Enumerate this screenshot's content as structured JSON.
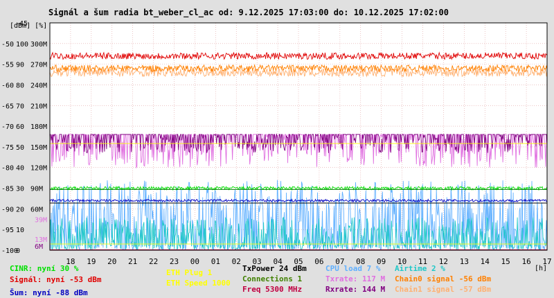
{
  "chart_data": {
    "type": "line",
    "title": "Signál a šum radia bt_weber_cl_ac od: 9.12.2025 17:03:00 do: 10.12.2025 17:02:00",
    "ylabel": "[dBm] [%]",
    "xlabel": "[h]",
    "xlim": [
      17,
      41
    ],
    "x_ticks": [
      "18",
      "19",
      "20",
      "21",
      "22",
      "23",
      "00",
      "01",
      "02",
      "03",
      "04",
      "05",
      "06",
      "07",
      "08",
      "09",
      "10",
      "11",
      "12",
      "13",
      "14",
      "15",
      "16",
      "17"
    ],
    "ylim": [
      -100,
      -45
    ],
    "y_ticks_dbm": [
      "-45",
      "-50",
      "-55",
      "-60",
      "-65",
      "-70",
      "-75",
      "-80",
      "-85",
      "-90",
      "-95",
      "-100"
    ],
    "y_ticks_pct": [
      "100",
      "90",
      "80",
      "70",
      "60",
      "50",
      "40",
      "30",
      "20",
      "10",
      "0"
    ],
    "y_ticks_rate": [
      "300M",
      "270M",
      "240M",
      "210M",
      "180M",
      "150M",
      "120M",
      "90M",
      "60M"
    ],
    "y_ticks_extra": [
      "39M",
      "13M",
      "6M"
    ],
    "series": [
      {
        "name": "Signál",
        "key": "signal",
        "color": "#e00000",
        "base": -53,
        "noise": 0.8
      },
      {
        "name": "Chain0 signal",
        "key": "chain0",
        "color": "#ff8000",
        "base": -56,
        "noise": 0.8
      },
      {
        "name": "Chain1 signal",
        "key": "chain1",
        "color": "#ffb070",
        "base": -57,
        "noise": 1.0
      },
      {
        "name": "Rxrate",
        "key": "rxrate",
        "color": "#800080",
        "base": -72,
        "low": -76.5
      },
      {
        "name": "Txrate",
        "key": "txrate",
        "color": "#e070e0",
        "base": -72,
        "low": -80
      },
      {
        "name": "CINR",
        "key": "cinr",
        "color": "#00e000",
        "base": -85,
        "noise": 0.4
      },
      {
        "name": "Šum",
        "key": "noise",
        "color": "#0000c0",
        "base": -88,
        "noise": 0.3
      },
      {
        "name": "CPU load",
        "key": "cpu",
        "color": "#60b0ff",
        "base": -100,
        "peak": -83
      },
      {
        "name": "Airtime",
        "key": "airtime",
        "color": "#20c8c8",
        "base": -100,
        "peak": -92
      },
      {
        "name": "ETH Plug",
        "key": "ethplug",
        "color": "#ffff00",
        "base": -74.2
      },
      {
        "name": "ETH Speed",
        "key": "ethspeed",
        "color": "#ffff00",
        "base": -98.5
      }
    ],
    "reference_lines": [
      {
        "key": "txpower",
        "color": "#000000",
        "value": -88.6
      },
      {
        "key": "connections",
        "color": "#008000",
        "value": -85.3
      },
      {
        "key": "freq",
        "color": "#c00040",
        "value": -99.9
      }
    ],
    "grid": true
  },
  "legend": [
    {
      "text": "CINR: nyní 30 %",
      "color": "#00e000"
    },
    {
      "text": "Signál: nyní -53 dBm",
      "color": "#e00000"
    },
    {
      "text": "Šum: nyní -88 dBm",
      "color": "#0000c0"
    },
    {
      "text": "ETH Plug 1",
      "color": "#ffff00"
    },
    {
      "text": "ETH Speed 1000",
      "color": "#ffff00"
    },
    {
      "text": "TxPower 24 dBm",
      "color": "#000000"
    },
    {
      "text": "Connections 1",
      "color": "#408000"
    },
    {
      "text": "Freq 5300 MHz",
      "color": "#c00040"
    },
    {
      "text": "CPU load 7 %",
      "color": "#60b0ff"
    },
    {
      "text": "Txrate: 117 M",
      "color": "#e070e0"
    },
    {
      "text": "Rxrate: 144 M",
      "color": "#800080"
    },
    {
      "text": "Airtime 2 %",
      "color": "#20c8c8"
    },
    {
      "text": "Chain0 signal -56 dBm",
      "color": "#ff8000"
    },
    {
      "text": "Chain1 signal -57 dBm",
      "color": "#ffb070"
    }
  ]
}
